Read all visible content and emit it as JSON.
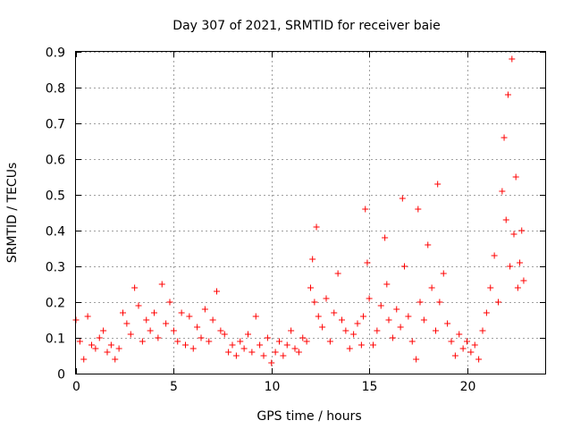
{
  "chart_data": {
    "type": "scatter",
    "title": "Day 307 of 2021, SRMTID for receiver baie",
    "xlabel": "GPS time / hours",
    "ylabel": "SRMTID / TECUs",
    "xlim": [
      0,
      24
    ],
    "ylim": [
      0,
      0.9
    ],
    "x_ticks": [
      0,
      5,
      10,
      15,
      20
    ],
    "y_ticks": [
      0,
      0.1,
      0.2,
      0.3,
      0.4,
      0.5,
      0.6,
      0.7,
      0.8,
      0.9
    ],
    "x_tick_labels": [
      "0",
      "5",
      "10",
      "15",
      "20"
    ],
    "y_tick_labels": [
      "0",
      "0.1",
      "0.2",
      "0.3",
      "0.4",
      "0.5",
      "0.6",
      "0.7",
      "0.8",
      "0.9"
    ],
    "grid": true,
    "marker": "+",
    "color": "#ff0000",
    "series": [
      {
        "name": "baie",
        "x": [
          0.0,
          0.2,
          0.4,
          0.6,
          0.8,
          1.0,
          1.2,
          1.4,
          1.6,
          1.8,
          2.0,
          2.2,
          2.4,
          2.6,
          2.8,
          3.0,
          3.2,
          3.4,
          3.6,
          3.8,
          4.0,
          4.2,
          4.4,
          4.6,
          4.8,
          5.0,
          5.2,
          5.4,
          5.6,
          5.8,
          6.0,
          6.2,
          6.4,
          6.6,
          6.8,
          7.0,
          7.2,
          7.4,
          7.6,
          7.8,
          8.0,
          8.2,
          8.4,
          8.6,
          8.8,
          9.0,
          9.2,
          9.4,
          9.6,
          9.8,
          10.0,
          10.2,
          10.4,
          10.6,
          10.8,
          11.0,
          11.2,
          11.4,
          11.6,
          11.8,
          12.0,
          12.1,
          12.2,
          12.3,
          12.4,
          12.6,
          12.8,
          13.0,
          13.2,
          13.4,
          13.6,
          13.8,
          14.0,
          14.2,
          14.4,
          14.6,
          14.7,
          14.8,
          14.9,
          15.0,
          15.2,
          15.4,
          15.6,
          15.8,
          15.9,
          16.0,
          16.2,
          16.4,
          16.6,
          16.7,
          16.8,
          17.0,
          17.2,
          17.4,
          17.5,
          17.6,
          17.8,
          18.0,
          18.2,
          18.4,
          18.5,
          18.6,
          18.8,
          19.0,
          19.2,
          19.4,
          19.6,
          19.8,
          20.0,
          20.2,
          20.4,
          20.6,
          20.8,
          21.0,
          21.2,
          21.4,
          21.6,
          21.8,
          21.9,
          22.0,
          22.1,
          22.2,
          22.3,
          22.4,
          22.5,
          22.6,
          22.7,
          22.8,
          22.9
        ],
        "y": [
          0.15,
          0.09,
          0.04,
          0.16,
          0.08,
          0.07,
          0.1,
          0.12,
          0.06,
          0.08,
          0.04,
          0.07,
          0.17,
          0.14,
          0.11,
          0.24,
          0.19,
          0.09,
          0.15,
          0.12,
          0.17,
          0.1,
          0.25,
          0.14,
          0.2,
          0.12,
          0.09,
          0.17,
          0.08,
          0.16,
          0.07,
          0.13,
          0.1,
          0.18,
          0.09,
          0.15,
          0.23,
          0.12,
          0.11,
          0.06,
          0.08,
          0.05,
          0.09,
          0.07,
          0.11,
          0.06,
          0.16,
          0.08,
          0.05,
          0.1,
          0.03,
          0.06,
          0.09,
          0.05,
          0.08,
          0.12,
          0.07,
          0.06,
          0.1,
          0.09,
          0.24,
          0.32,
          0.2,
          0.41,
          0.16,
          0.13,
          0.21,
          0.09,
          0.17,
          0.28,
          0.15,
          0.12,
          0.07,
          0.11,
          0.14,
          0.08,
          0.16,
          0.46,
          0.31,
          0.21,
          0.08,
          0.12,
          0.19,
          0.38,
          0.25,
          0.15,
          0.1,
          0.18,
          0.13,
          0.49,
          0.3,
          0.16,
          0.09,
          0.04,
          0.46,
          0.2,
          0.15,
          0.36,
          0.24,
          0.12,
          0.53,
          0.2,
          0.28,
          0.14,
          0.09,
          0.05,
          0.11,
          0.07,
          0.09,
          0.06,
          0.08,
          0.04,
          0.12,
          0.17,
          0.24,
          0.33,
          0.2,
          0.51,
          0.66,
          0.43,
          0.78,
          0.3,
          0.88,
          0.39,
          0.55,
          0.24,
          0.31,
          0.4,
          0.26
        ]
      }
    ]
  }
}
